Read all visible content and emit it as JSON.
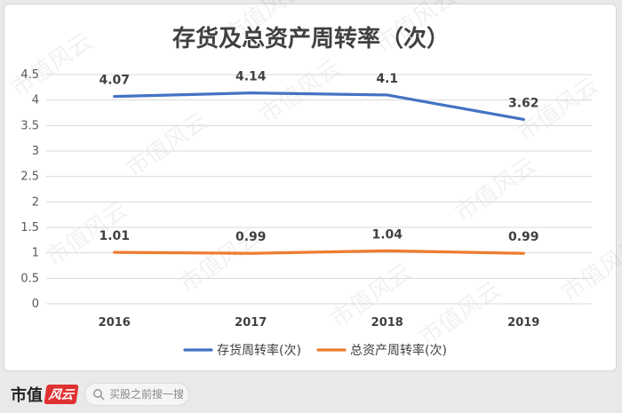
{
  "chart_data": {
    "type": "line",
    "title": "存货及总资产周转率（次）",
    "categories": [
      "2016",
      "2017",
      "2018",
      "2019"
    ],
    "series": [
      {
        "name": "存货周转率(次)",
        "values": [
          4.07,
          4.14,
          4.1,
          3.62
        ],
        "labels": [
          "4.07",
          "4.14",
          "4.1",
          "3.62"
        ],
        "color": "#4472c4"
      },
      {
        "name": "总资产周转率(次)",
        "values": [
          1.01,
          0.99,
          1.04,
          0.99
        ],
        "labels": [
          "1.01",
          "0.99",
          "1.04",
          "0.99"
        ],
        "color": "#ed7d31"
      }
    ],
    "yticks": [
      "0",
      "0.5",
      "1",
      "1.5",
      "2",
      "2.5",
      "3",
      "3.5",
      "4",
      "4.5"
    ],
    "ylim": [
      0,
      4.5
    ],
    "grid": true,
    "legend": "bottom",
    "xlabel": "",
    "ylabel": ""
  },
  "watermark": {
    "text": "市值风云"
  },
  "footer": {
    "logo_text": "市值",
    "logo_mark": "风云",
    "search_placeholder": "买股之前搜一搜"
  }
}
